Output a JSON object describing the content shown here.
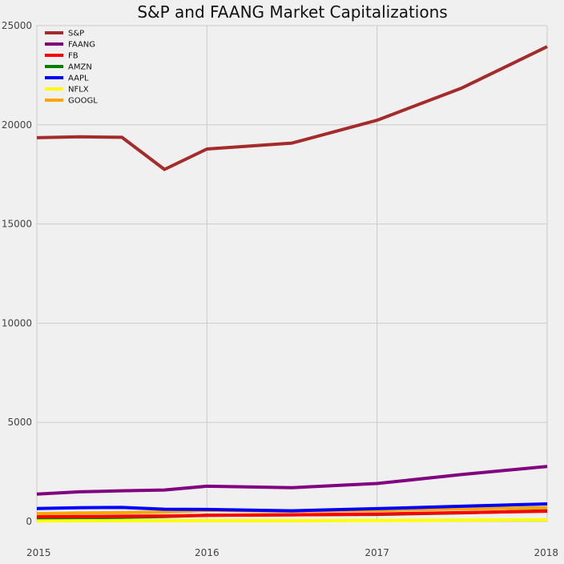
{
  "chart_data": {
    "type": "line",
    "title": "S&P and FAANG Market Capitalizations",
    "xlabel": "",
    "ylabel": "",
    "x": [
      2015.0,
      2015.25,
      2015.5,
      2015.75,
      2016.0,
      2016.25,
      2016.5,
      2016.75,
      2017.0,
      2017.25,
      2017.5,
      2017.75,
      2018.0
    ],
    "xlim": [
      2015,
      2018
    ],
    "ylim": [
      0,
      25000
    ],
    "x_ticks": [
      "2015",
      "2016",
      "2017",
      "2018"
    ],
    "x_tick_values": [
      2015,
      2016,
      2017,
      2018
    ],
    "y_ticks": [
      "0",
      "5000",
      "10000",
      "15000",
      "20000",
      "25000"
    ],
    "y_tick_values": [
      0,
      5000,
      10000,
      15000,
      20000,
      25000
    ],
    "grid": true,
    "legend_position": "top-left",
    "series": [
      {
        "name": "S&P",
        "color": "#a52a2a",
        "x": [
          2015.0,
          2015.25,
          2015.5,
          2015.75,
          2016.0,
          2016.5,
          2017.0,
          2017.5,
          2018.0
        ],
        "values": [
          19350,
          19400,
          19370,
          17750,
          18780,
          19080,
          20230,
          21860,
          23940
        ]
      },
      {
        "name": "FAANG",
        "color": "#800080",
        "x": [
          2015.0,
          2015.25,
          2015.5,
          2015.75,
          2016.0,
          2016.5,
          2017.0,
          2017.5,
          2018.0
        ],
        "values": [
          1380,
          1500,
          1550,
          1590,
          1780,
          1710,
          1920,
          2370,
          2780
        ]
      },
      {
        "name": "FB",
        "color": "#ff0000",
        "x": [
          2015.0,
          2015.25,
          2015.5,
          2015.75,
          2016.0,
          2016.5,
          2017.0,
          2017.5,
          2018.0
        ],
        "values": [
          240,
          250,
          265,
          280,
          310,
          340,
          380,
          450,
          520
        ]
      },
      {
        "name": "AMZN",
        "color": "#008000",
        "x": [
          2015.0,
          2015.25,
          2015.5,
          2015.75,
          2016.0,
          2016.5,
          2017.0,
          2017.5,
          2018.0
        ],
        "values": [
          170,
          190,
          210,
          250,
          320,
          340,
          360,
          440,
          540
        ]
      },
      {
        "name": "AAPL",
        "color": "#0000ff",
        "x": [
          2015.0,
          2015.25,
          2015.5,
          2015.75,
          2016.0,
          2016.5,
          2017.0,
          2017.5,
          2018.0
        ],
        "values": [
          660,
          700,
          710,
          620,
          610,
          540,
          650,
          770,
          890
        ]
      },
      {
        "name": "NFLX",
        "color": "#ffff00",
        "x": [
          2015.0,
          2015.25,
          2015.5,
          2015.75,
          2016.0,
          2016.5,
          2017.0,
          2017.5,
          2018.0
        ],
        "values": [
          30,
          35,
          40,
          45,
          45,
          45,
          55,
          70,
          90
        ]
      },
      {
        "name": "GOOGL",
        "color": "#ffa500",
        "x": [
          2015.0,
          2015.25,
          2015.5,
          2015.75,
          2016.0,
          2016.5,
          2017.0,
          2017.5,
          2018.0
        ],
        "values": [
          400,
          430,
          450,
          480,
          560,
          520,
          560,
          640,
          700
        ]
      }
    ]
  }
}
